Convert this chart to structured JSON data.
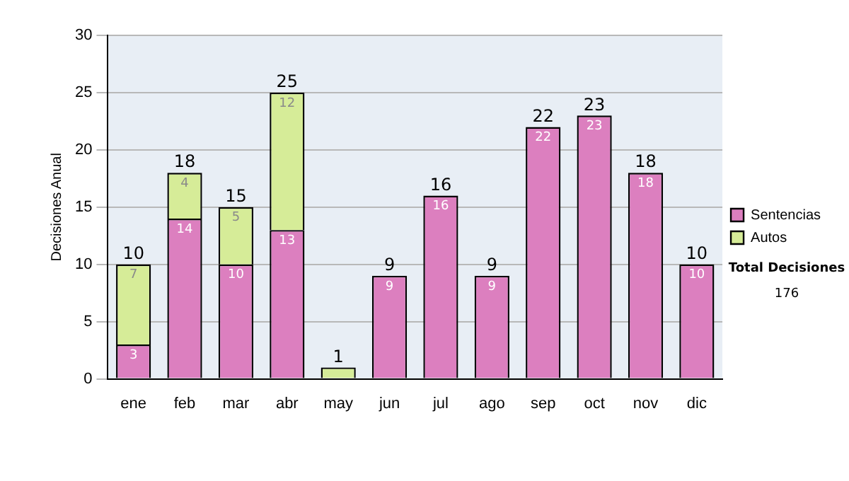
{
  "chart_data": {
    "type": "bar",
    "stacked": true,
    "ylabel": "Decisiones Anual",
    "categories": [
      "ene",
      "feb",
      "mar",
      "abr",
      "may",
      "jun",
      "jul",
      "ago",
      "sep",
      "oct",
      "nov",
      "dic"
    ],
    "series": [
      {
        "name": "Sentencias",
        "color": "#dc7fbf",
        "values": [
          3,
          14,
          10,
          13,
          null,
          9,
          16,
          9,
          22,
          23,
          18,
          10
        ],
        "value_labels": [
          "3",
          "14",
          "10",
          "13",
          null,
          "9",
          "16",
          "9",
          "22",
          "23",
          "18",
          "10"
        ]
      },
      {
        "name": "Autos",
        "color": "#d6ec98",
        "values": [
          7,
          4,
          5,
          12,
          1,
          null,
          null,
          null,
          null,
          null,
          null,
          null
        ],
        "value_labels": [
          "7",
          "4",
          "5",
          "12",
          null,
          null,
          null,
          null,
          null,
          null,
          null,
          null
        ]
      }
    ],
    "totals": [
      "10",
      "18",
      "15",
      "25",
      "1",
      "9",
      "16",
      "9",
      "22",
      "23",
      "18",
      "10"
    ],
    "ylim": [
      0,
      30
    ],
    "yticks": [
      0,
      5,
      10,
      15,
      20,
      25,
      30
    ],
    "grid": "y",
    "legend": "right",
    "annotations": [
      "Total Decisiones",
      "176"
    ]
  }
}
